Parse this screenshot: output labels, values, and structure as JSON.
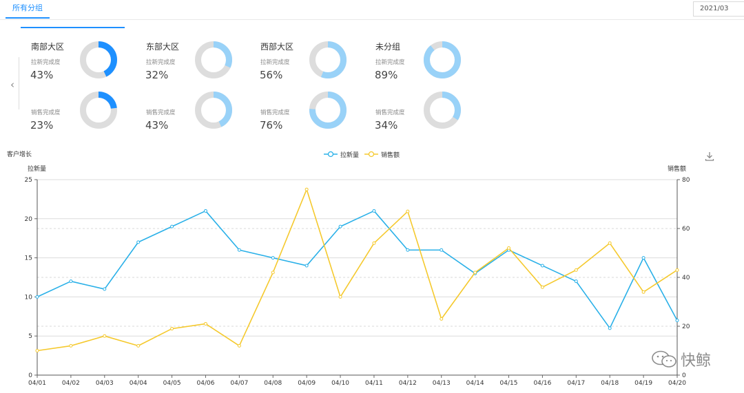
{
  "tabs": {
    "active_label": "所有分组"
  },
  "date_picker": {
    "value": "2021/03"
  },
  "nav": {
    "prev_symbol": "‹"
  },
  "colors": {
    "accent": "#1e90ff",
    "light_accent": "#99d2f8",
    "track": "#dddddd",
    "line_new": "#29b0e8",
    "line_sales": "#f5c92d"
  },
  "groups": [
    {
      "name": "南部大区",
      "new_label": "拉新完成度",
      "new_value": "43%",
      "new_ratio": 0.43,
      "sales_label": "销售完成度",
      "sales_value": "23%",
      "sales_ratio": 0.23,
      "tone": "dark"
    },
    {
      "name": "东部大区",
      "new_label": "拉新完成度",
      "new_value": "32%",
      "new_ratio": 0.32,
      "sales_label": "销售完成度",
      "sales_value": "43%",
      "sales_ratio": 0.43,
      "tone": "light"
    },
    {
      "name": "西部大区",
      "new_label": "拉新完成度",
      "new_value": "56%",
      "new_ratio": 0.56,
      "sales_label": "销售完成度",
      "sales_value": "76%",
      "sales_ratio": 0.76,
      "tone": "light"
    },
    {
      "name": "未分组",
      "new_label": "拉新完成度",
      "new_value": "89%",
      "new_ratio": 0.89,
      "sales_label": "销售完成度",
      "sales_value": "34%",
      "sales_ratio": 0.34,
      "tone": "light"
    }
  ],
  "chart_data": {
    "type": "line",
    "title": "客户增长",
    "categories": [
      "04/01",
      "04/02",
      "04/03",
      "04/04",
      "04/05",
      "04/06",
      "04/07",
      "04/08",
      "04/09",
      "04/10",
      "04/11",
      "04/12",
      "04/13",
      "04/14",
      "04/15",
      "04/16",
      "04/17",
      "04/18",
      "04/19",
      "04/20"
    ],
    "series": [
      {
        "name": "拉新量",
        "axis": "left",
        "values": [
          10,
          12,
          11,
          17,
          19,
          21,
          16,
          15,
          14,
          19,
          21,
          16,
          16,
          13,
          16,
          14,
          12,
          6,
          15,
          7
        ]
      },
      {
        "name": "销售额",
        "axis": "right",
        "values": [
          10,
          12,
          16,
          12,
          19,
          21,
          12,
          42,
          76,
          32,
          54,
          67,
          23,
          42,
          52,
          36,
          43,
          54,
          34,
          43
        ]
      }
    ],
    "ylabel_left": "拉新量",
    "ylabel_right": "销售额",
    "ylim_left": [
      0,
      25
    ],
    "yticks_left": [
      0,
      5,
      10,
      15,
      20,
      25
    ],
    "ylim_right": [
      0,
      80
    ],
    "yticks_right": [
      0,
      20,
      40,
      60,
      80
    ]
  },
  "watermark": {
    "text": "快鲸"
  }
}
